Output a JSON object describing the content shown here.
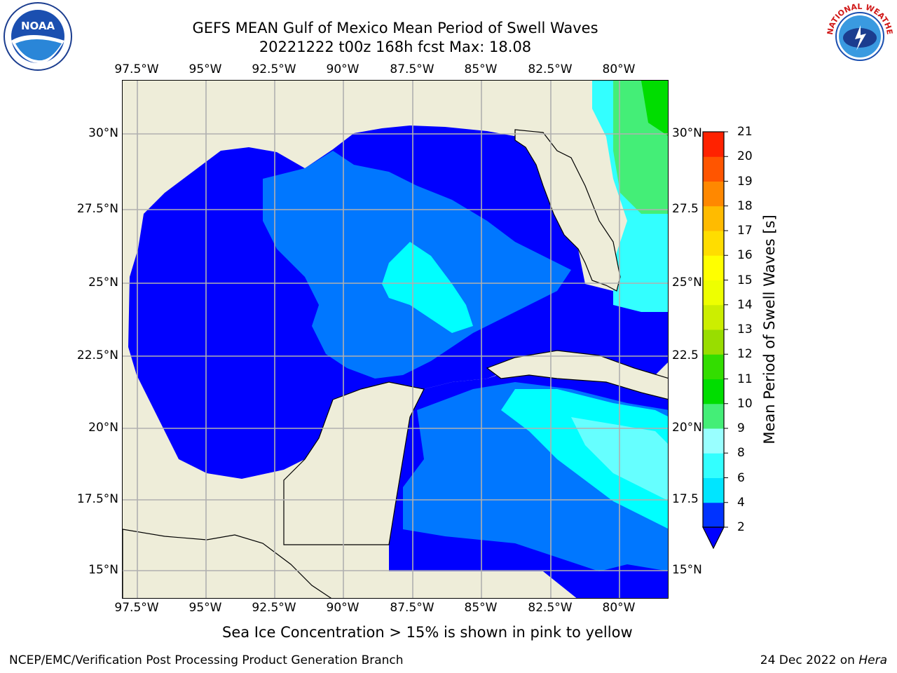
{
  "title": {
    "line1": "GEFS MEAN Gulf of Mexico Mean Period of Swell Waves",
    "line2": "20221222 t00z 168h fcst   Max: 18.08"
  },
  "map": {
    "region": "Gulf of Mexico",
    "lon_labels": [
      "97.5°W",
      "95°W",
      "92.5°W",
      "90°W",
      "87.5°W",
      "85°W",
      "82.5°W",
      "80°W"
    ],
    "lat_labels_left": [
      "30°N",
      "27.5°N",
      "25°N",
      "22.5°N",
      "20°N",
      "17.5°N",
      "15°N"
    ],
    "lat_labels_right": [
      "30°N",
      "27.5",
      "25°N",
      "22.5",
      "20°N",
      "17.5",
      "15°N"
    ],
    "land_color": "#eeedd9",
    "grid": true
  },
  "colorbar": {
    "label": "Mean Period of Swell Waves [s]",
    "ticks": [
      "2",
      "4",
      "6",
      "8",
      "9",
      "10",
      "11",
      "12",
      "13",
      "14",
      "15",
      "16",
      "17",
      "18",
      "19",
      "20",
      "21"
    ],
    "colors": [
      "#0033ff",
      "#00e5ff",
      "#33ffff",
      "#99ffff",
      "#44ee77",
      "#00dd00",
      "#33dd00",
      "#99dd00",
      "#ccee00",
      "#eeff00",
      "#ffff00",
      "#ffdd00",
      "#ffbb00",
      "#ff8800",
      "#ff5500",
      "#ff2200"
    ],
    "under_color": "#0000ff"
  },
  "sea_ice_note": "Sea Ice Concentration > 15% is shown in pink to yellow",
  "footer": {
    "left": "NCEP/EMC/Verification Post Processing Product Generation Branch",
    "date": "24 Dec 2022 on",
    "host": "Hera"
  },
  "logos": {
    "noaa": "NOAA",
    "nws_text": "NATIONAL WEATHER SERVICE"
  }
}
